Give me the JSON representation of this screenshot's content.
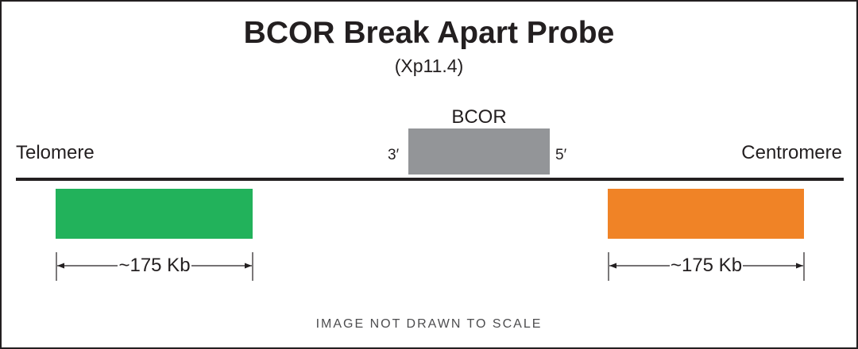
{
  "title": "BCOR Break Apart Probe",
  "subtitle": "(Xp11.4)",
  "chromosome": {
    "left_label": "Telomere",
    "right_label": "Centromere",
    "line_color": "#231f20"
  },
  "gene": {
    "name": "BCOR",
    "left_end": "3′",
    "right_end": "5′",
    "color": "#939598"
  },
  "probes": [
    {
      "color": "#22b25b",
      "size_label": "~175 Kb"
    },
    {
      "color": "#f08326",
      "size_label": "~175 Kb"
    }
  ],
  "footnote": "IMAGE NOT DRAWN TO SCALE"
}
